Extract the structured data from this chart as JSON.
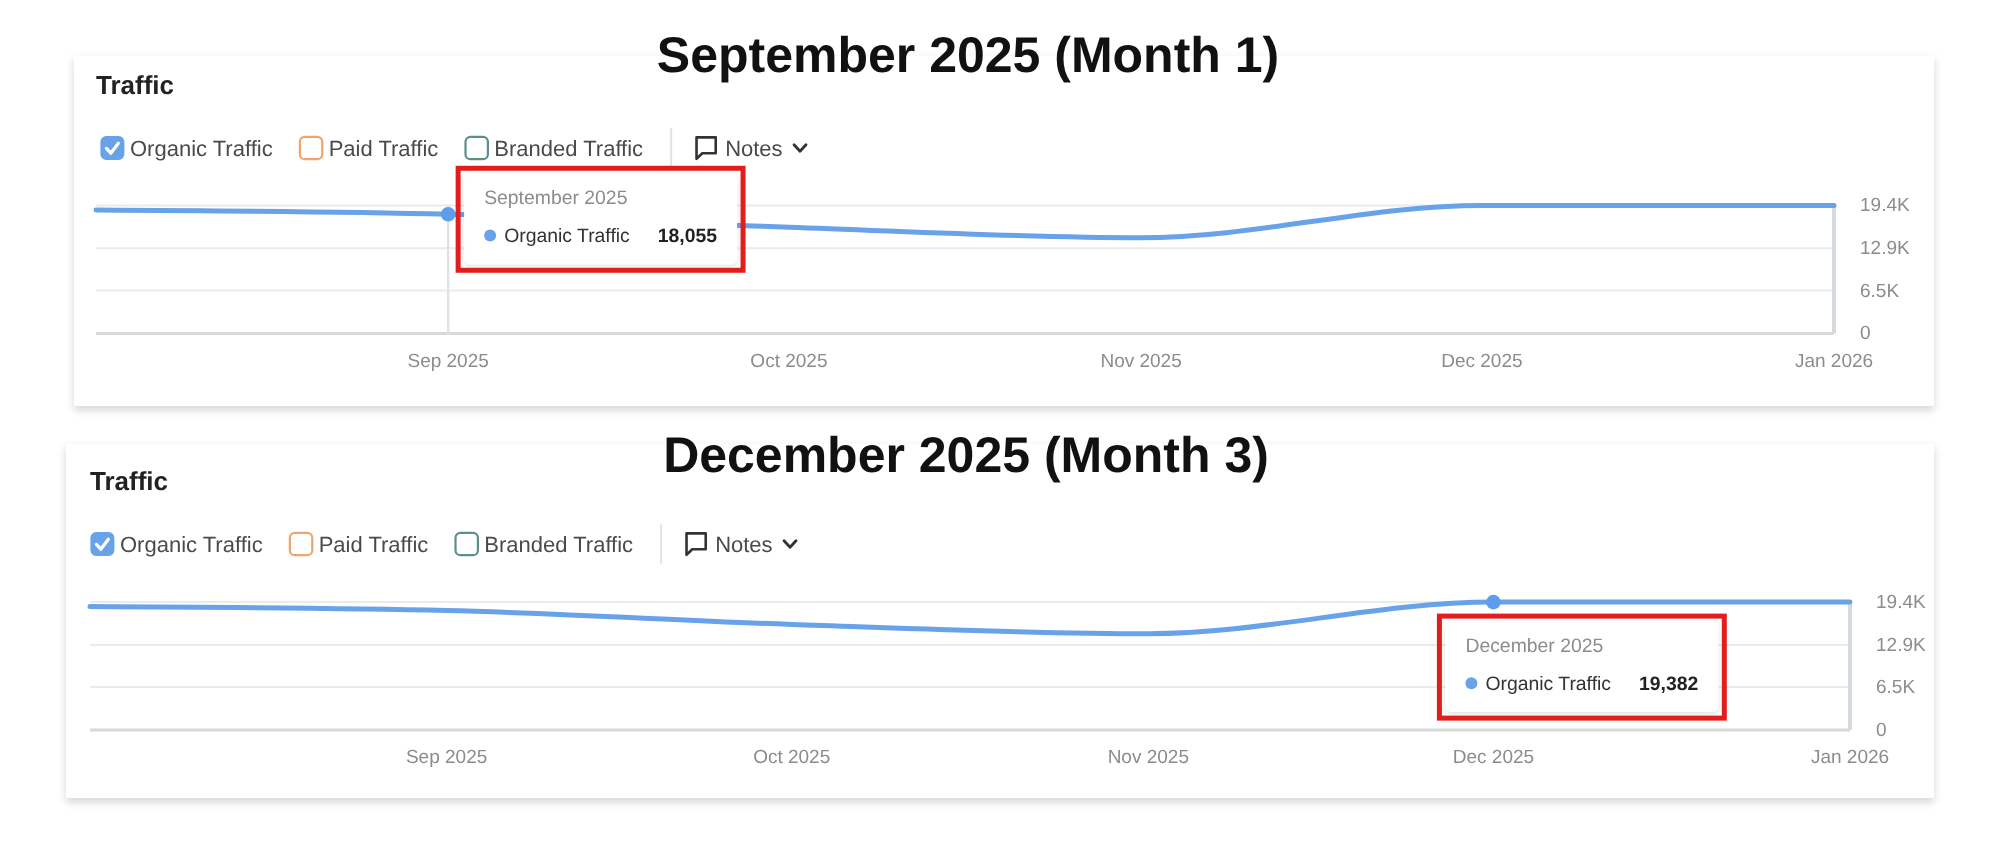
{
  "chart_data": [
    {
      "type": "line",
      "title": "September 2025 (Month 1)",
      "subtitle": "Traffic",
      "x": [
        "2025-08",
        "2025-09",
        "2025-10",
        "2025-11",
        "2025-12",
        "2026-01"
      ],
      "xlim": [
        "2025-08",
        "2026-01"
      ],
      "xticks": [
        {
          "value": "2025-09",
          "label": "Sep 2025"
        },
        {
          "value": "2025-10",
          "label": "Oct 2025"
        },
        {
          "value": "2025-11",
          "label": "Nov 2025"
        },
        {
          "value": "2025-12",
          "label": "Dec 2025"
        },
        {
          "value": "2026-01",
          "label": "Jan 2026"
        }
      ],
      "ylim": [
        0,
        19400
      ],
      "yticks": [
        0,
        {
          "value": 6500,
          "label": "6.5K"
        },
        {
          "value": 12900,
          "label": "12.9K"
        },
        {
          "value": 19400,
          "label": "19.4K"
        }
      ],
      "grid": "y",
      "legend": "top left",
      "series": [
        {
          "name": "Organic Traffic",
          "color": "#68a2e9",
          "values": [
            18700,
            18055,
            16100,
            14500,
            19400,
            19400
          ]
        },
        {
          "name": "Paid Traffic",
          "color": "#f0a46c",
          "values": [
            null,
            null,
            null,
            null,
            null,
            null
          ]
        },
        {
          "name": "Branded Traffic",
          "color": "#5b8f8a",
          "values": [
            null,
            null,
            null,
            null,
            null,
            null
          ]
        },
        {
          "type": "scatter",
          "color": "#5d9ded",
          "x": [
            "2025-09"
          ],
          "values": [
            18055
          ],
          "marker": "circle"
        }
      ],
      "ref_lines": [
        {
          "axis": "x",
          "value": "2025-09",
          "color": "#e2e2e2"
        }
      ],
      "annotations": [
        "Notes",
        {
          "text": "September 2025",
          "x": "2025-09",
          "y": 18055
        },
        "Organic Traffic",
        "18,055"
      ]
    },
    {
      "type": "line",
      "title": "December 2025 (Month 3)",
      "subtitle": "Traffic",
      "x": [
        "2025-08",
        "2025-09",
        "2025-10",
        "2025-11",
        "2025-12",
        "2026-01"
      ],
      "xlim": [
        "2025-08",
        "2026-01"
      ],
      "xticks": [
        {
          "value": "2025-09",
          "label": "Sep 2025"
        },
        {
          "value": "2025-10",
          "label": "Oct 2025"
        },
        {
          "value": "2025-11",
          "label": "Nov 2025"
        },
        {
          "value": "2025-12",
          "label": "Dec 2025"
        },
        {
          "value": "2026-01",
          "label": "Jan 2026"
        }
      ],
      "ylim": [
        0,
        19400
      ],
      "yticks": [
        0,
        {
          "value": 6500,
          "label": "6.5K"
        },
        {
          "value": 12900,
          "label": "12.9K"
        },
        {
          "value": 19400,
          "label": "19.4K"
        }
      ],
      "grid": "y",
      "legend": "top left",
      "series": [
        {
          "name": "Organic Traffic",
          "color": "#68a2e9",
          "values": [
            18700,
            18100,
            16000,
            14600,
            19382,
            19400
          ]
        },
        {
          "name": "Paid Traffic",
          "color": "#f0a46c",
          "values": [
            null,
            null,
            null,
            null,
            null,
            null
          ]
        },
        {
          "name": "Branded Traffic",
          "color": "#5b8f8a",
          "values": [
            null,
            null,
            null,
            null,
            null,
            null
          ]
        },
        {
          "type": "scatter",
          "color": "#5d9ded",
          "x": [
            "2025-12"
          ],
          "values": [
            19382
          ],
          "marker": "circle"
        }
      ],
      "annotations": [
        "Notes",
        {
          "text": "December 2025",
          "x": "2025-12",
          "y": 19382
        },
        "Organic Traffic",
        "19,382"
      ]
    }
  ]
}
